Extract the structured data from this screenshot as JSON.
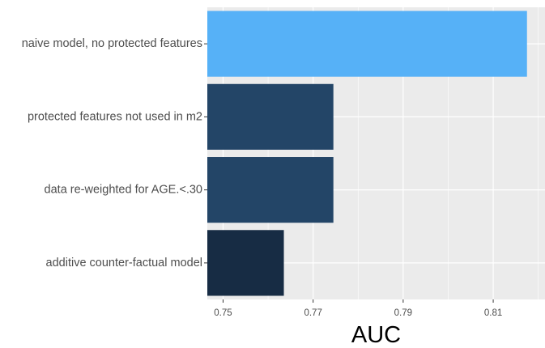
{
  "chart_data": {
    "type": "bar",
    "orientation": "horizontal",
    "categories": [
      "naive model, no protected features",
      "protected features not used in m2",
      "data re-weighted for AGE.<.30",
      "additive counter-factual model"
    ],
    "values": [
      0.8175,
      0.7745,
      0.7745,
      0.7635
    ],
    "colors": [
      "#56B1F7",
      "#234567",
      "#234567",
      "#172C44"
    ],
    "xlabel": "AUC",
    "ylabel": "",
    "xlim": [
      0.7465,
      0.8215
    ],
    "xticks": [
      0.75,
      0.77,
      0.79,
      0.81
    ],
    "xtick_labels": [
      "0.75",
      "0.77",
      "0.79",
      "0.81"
    ],
    "grid": true,
    "panel_background": "#EBEBEB",
    "legend": "none"
  }
}
